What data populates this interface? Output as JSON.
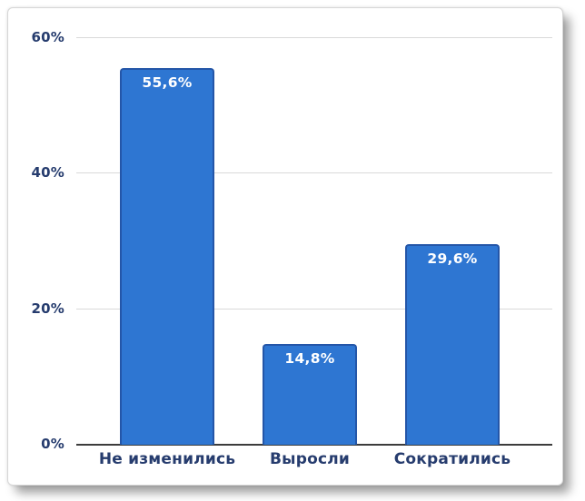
{
  "chart_data": {
    "type": "bar",
    "categories": [
      "Не изменились",
      "Выросли",
      "Сократились"
    ],
    "values": [
      55.6,
      14.8,
      29.6
    ],
    "value_labels": [
      "55,6%",
      "14,8%",
      "29,6%"
    ],
    "yticks": [
      0,
      20,
      40,
      60
    ],
    "ytick_labels": [
      "0%",
      "20%",
      "40%",
      "60%"
    ],
    "ylim": [
      0,
      64
    ],
    "title": "",
    "xlabel": "",
    "ylabel": "",
    "grid": "horizontal",
    "legend": "none",
    "colors": {
      "bar_fill": "#2e76d2",
      "bar_border": "#2456a8",
      "value_label": "#ffffff",
      "axis_text": "#263c6e",
      "gridline": "#d9d9d9",
      "baseline": "#3c3c3c",
      "card_background": "#ffffff",
      "card_border": "#d6d6d6"
    }
  }
}
